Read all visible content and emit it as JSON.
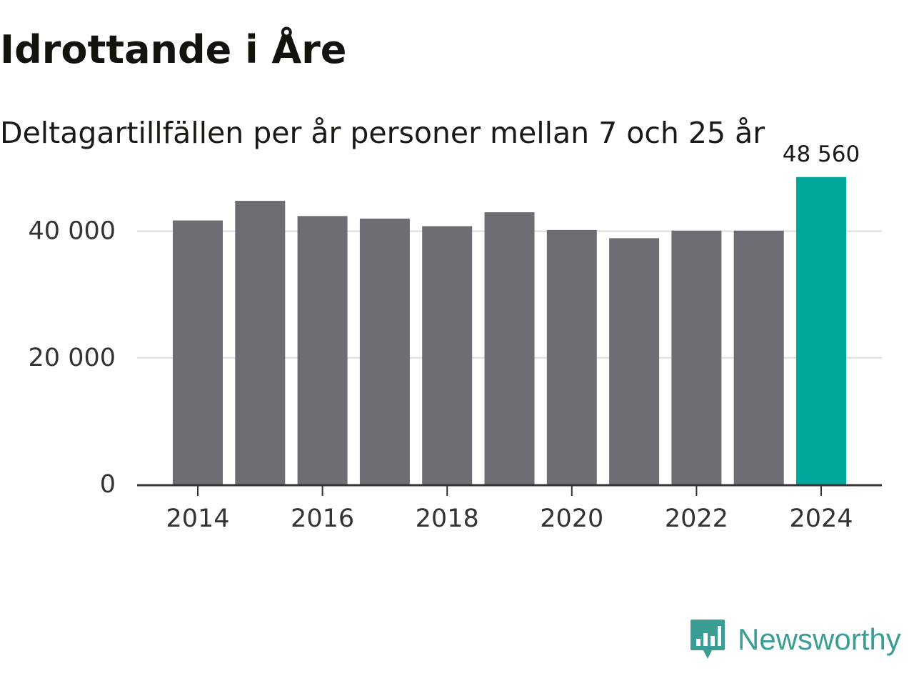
{
  "header": {
    "title": "Idrottande i Åre",
    "subtitle": "Deltagartillfällen per år personer mellan 7 och 25 år"
  },
  "brand": {
    "name": "Newsworthy",
    "icon": "newsworthy-logo-icon",
    "color": "#3a9e95"
  },
  "colors": {
    "bar": "#6e6d73",
    "highlight": "#00a69a",
    "grid": "#dddddd",
    "axis": "#333333"
  },
  "chart_data": {
    "type": "bar",
    "title": "Idrottande i Åre",
    "subtitle": "Deltagartillfällen per år personer mellan 7 och 25 år",
    "xlabel": "",
    "ylabel": "",
    "categories": [
      2014,
      2015,
      2016,
      2017,
      2018,
      2019,
      2020,
      2021,
      2022,
      2023,
      2024
    ],
    "values": [
      41700,
      44800,
      42400,
      42000,
      40800,
      43000,
      40200,
      38900,
      40100,
      40100,
      48560
    ],
    "highlight_index": 10,
    "highlight_label": "48 560",
    "ylim": [
      0,
      50000
    ],
    "y_ticks": [
      0,
      20000,
      40000
    ],
    "y_tick_labels": [
      "0",
      "20 000",
      "40 000"
    ],
    "x_ticks": [
      2014,
      2016,
      2018,
      2020,
      2022,
      2024
    ],
    "x_tick_labels": [
      "2014",
      "2016",
      "2018",
      "2020",
      "2022",
      "2024"
    ],
    "grid": true
  }
}
